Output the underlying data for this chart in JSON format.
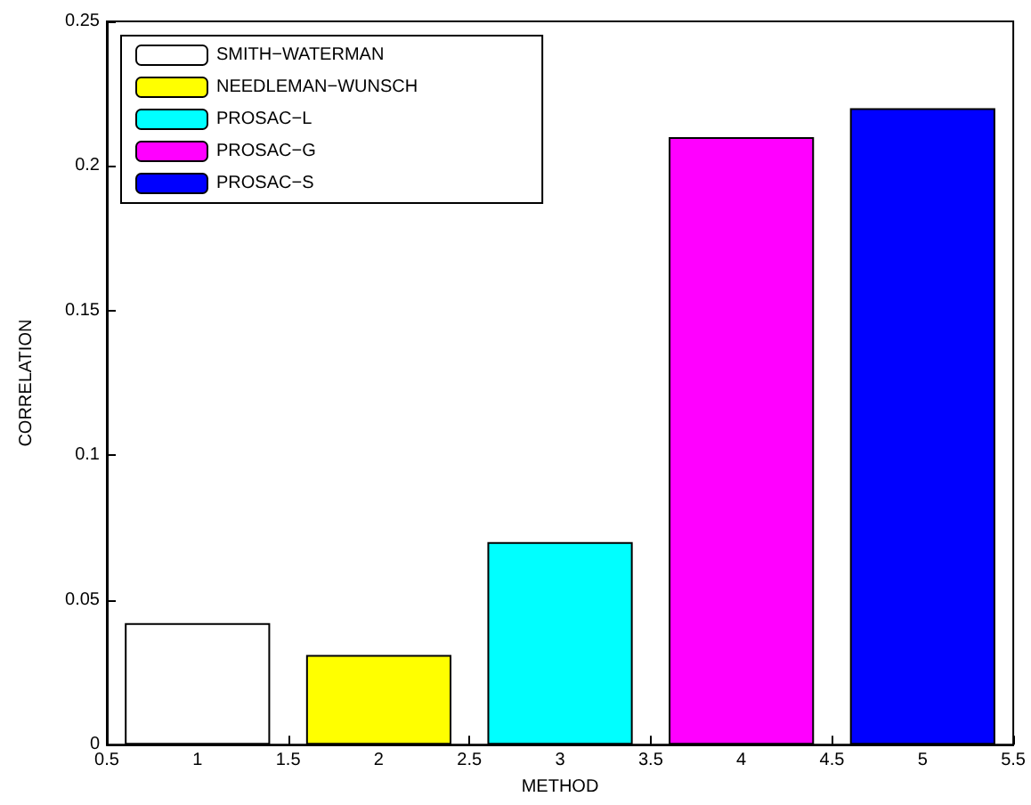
{
  "chart_data": {
    "type": "bar",
    "xlabel": "METHOD",
    "ylabel": "CORRELATION",
    "xlim": [
      0.5,
      5.5
    ],
    "xticks": [
      0.5,
      1,
      1.5,
      2,
      2.5,
      3,
      3.5,
      4,
      4.5,
      5,
      5.5
    ],
    "ylim": [
      0,
      0.25
    ],
    "yticks": [
      0,
      0.05,
      0.1,
      0.15,
      0.2,
      0.25
    ],
    "series": [
      {
        "name": "SMITH−WATERMAN",
        "color": "#ffffff",
        "x": [
          1
        ],
        "values": [
          0.042
        ]
      },
      {
        "name": "NEEDLEMAN−WUNSCH",
        "color": "#ffff00",
        "x": [
          2
        ],
        "values": [
          0.031
        ]
      },
      {
        "name": "PROSAC−L",
        "color": "#00ffff",
        "x": [
          3
        ],
        "values": [
          0.07
        ]
      },
      {
        "name": "PROSAC−G",
        "color": "#ff00ff",
        "x": [
          4
        ],
        "values": [
          0.21
        ]
      },
      {
        "name": "PROSAC−S",
        "color": "#0000ff",
        "x": [
          5
        ],
        "values": [
          0.22
        ]
      }
    ],
    "legend": "top left",
    "grid": false
  }
}
